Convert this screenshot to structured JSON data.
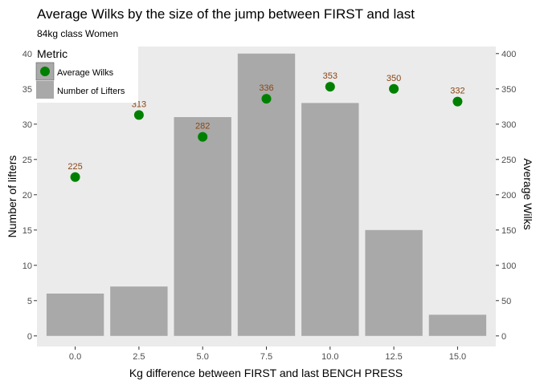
{
  "chart_data": {
    "type": "bar",
    "title": "Average Wilks by the size of the jump between FIRST and last",
    "subtitle": "84kg class Women",
    "xlabel": "Kg difference between FIRST and last BENCH PRESS",
    "ylabel_left": "Number of lifters",
    "ylabel_right": "Average Wilks",
    "x": [
      0.0,
      2.5,
      5.0,
      7.5,
      10.0,
      12.5,
      15.0
    ],
    "x_tick_labels": [
      "0.0",
      "2.5",
      "5.0",
      "7.5",
      "10.0",
      "12.5",
      "15.0"
    ],
    "xlim": [
      -1.5,
      16.5
    ],
    "ylim_left": [
      -1.5,
      41
    ],
    "ylim_right": [
      -15,
      410
    ],
    "y_ticks_left": [
      "0",
      "5",
      "10",
      "15",
      "20",
      "25",
      "30",
      "35",
      "40"
    ],
    "y_ticks_right": [
      "0",
      "50",
      "100",
      "150",
      "200",
      "250",
      "300",
      "350",
      "400"
    ],
    "series": [
      {
        "name": "Number of Lifters",
        "kind": "bar",
        "axis": "left",
        "color": "#a9a9a9",
        "values": [
          6,
          7,
          31,
          40,
          33,
          15,
          3
        ]
      },
      {
        "name": "Average Wilks",
        "kind": "point",
        "axis": "right",
        "color": "#008000",
        "values": [
          225,
          313,
          282,
          336,
          353,
          350,
          332
        ],
        "labels": [
          "225",
          "313",
          "282",
          "336",
          "353",
          "350",
          "332"
        ],
        "label_color": "#8b4513"
      }
    ],
    "legend": {
      "title": "Metric",
      "position": "top-left",
      "entries": [
        "Average Wilks",
        "Number of Lifters"
      ]
    },
    "grid": false,
    "panel_background": "#ebebeb"
  }
}
